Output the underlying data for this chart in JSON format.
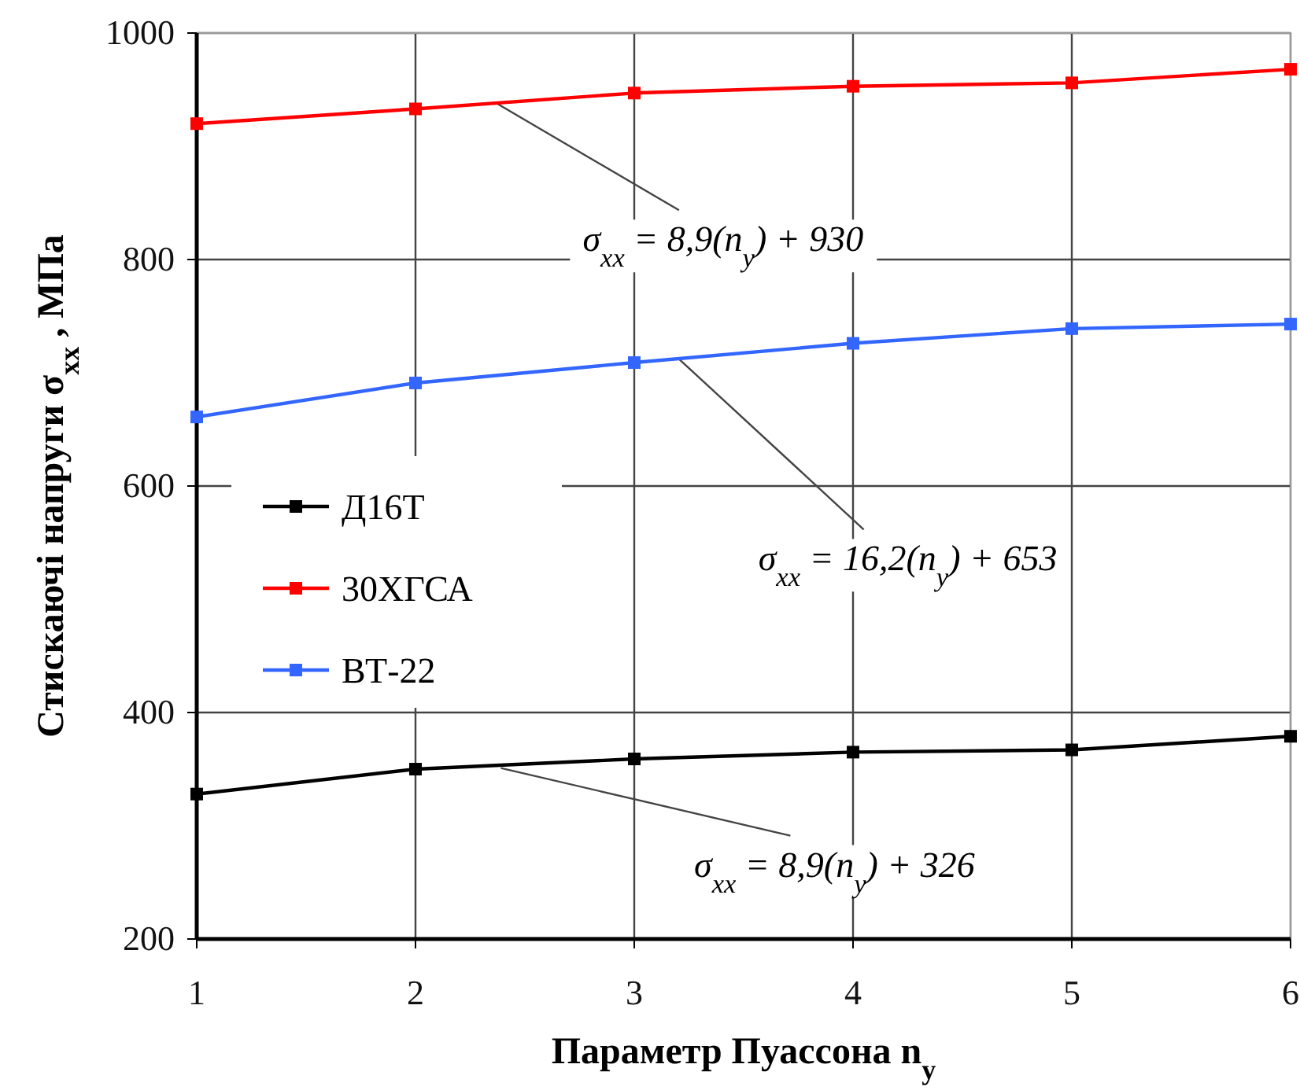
{
  "chart_data": {
    "type": "line",
    "xlabel": "Параметр Пуассона n$_{y}$",
    "ylabel": "Стискаючі напруги  σ$_{xx}$ , МПа",
    "x": [
      1,
      2,
      3,
      4,
      5,
      6
    ],
    "series": [
      {
        "name": "Д16Т",
        "color": "#000000",
        "values": [
          328,
          350,
          359,
          365,
          367,
          379
        ]
      },
      {
        "name": "30ХГСА",
        "color": "#ff0000",
        "values": [
          920,
          933,
          947,
          953,
          956,
          968
        ]
      },
      {
        "name": "ВТ-22",
        "color": "#3366ff",
        "values": [
          661,
          691,
          709,
          726,
          739,
          743
        ]
      }
    ],
    "xlim": [
      1,
      6
    ],
    "xticks": [
      1,
      2,
      3,
      4,
      5,
      6
    ],
    "ylim": [
      200,
      1000
    ],
    "yticks": [
      200,
      400,
      600,
      800,
      1000
    ],
    "grid": true,
    "legend": "left",
    "marker": "square",
    "line_style": "solid",
    "annotations": [
      {
        "text": "σ$_{xx}$ = 8,9(n$_{y}$) + 930",
        "x": 2.37,
        "y": 938
      },
      {
        "text": "σ$_{xx}$ = 16,2(n$_{y}$) + 653",
        "x": 3.2,
        "y": 713
      },
      {
        "text": "σ$_{xx}$ = 8,9(n$_{y}$) + 326",
        "x": 2.39,
        "y": 351
      }
    ]
  }
}
